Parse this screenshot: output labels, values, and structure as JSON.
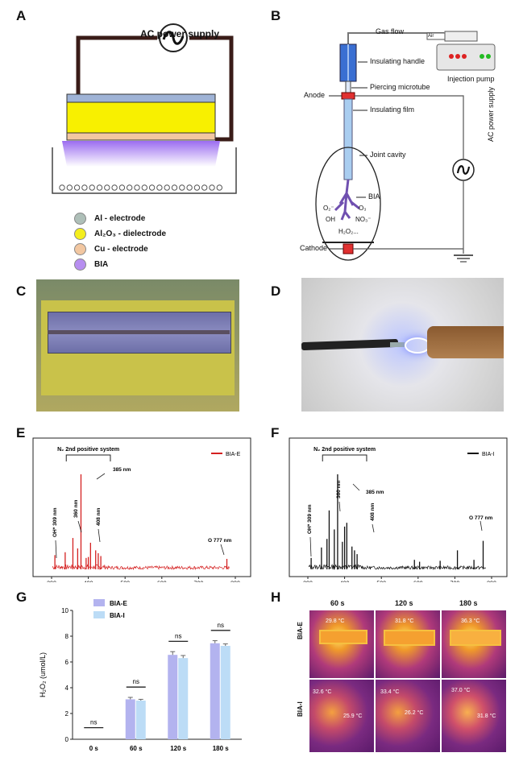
{
  "panels": [
    "A",
    "B",
    "C",
    "D",
    "E",
    "F",
    "G",
    "H"
  ],
  "panel_a": {
    "power_label": "AC  power supply",
    "legend": [
      {
        "label": "Al - electrode",
        "color": "#aebfb8"
      },
      {
        "label": "Al₂O₃ - dielectrode",
        "color": "#f4ee1e"
      },
      {
        "label": "Cu - electrode",
        "color": "#f2c7a1"
      },
      {
        "label": "BIA",
        "color": "#b78ef0"
      }
    ],
    "colors": {
      "electrode_top": "#9fb3d6",
      "dielectric": "#f8f000",
      "cu": "#f2c7a1",
      "plasma": "#a47bf0",
      "wire": "#3a1c18"
    }
  },
  "panel_b": {
    "gas_flow": "Gas flow",
    "air": "Air",
    "injection_pump": "Injection pump",
    "insulating_handle": "Insulating handle",
    "piercing_microtube": "Piercing  microtube",
    "anode": "Anode",
    "insulating_film": "Insulating film",
    "joint_cavity": "Joint cavity",
    "bia": "BIA",
    "ac_power": "AC power supply",
    "cathode": "Cathode",
    "species": {
      "o2": "O₂⁻",
      "o3": "O₃",
      "oh": "OH",
      "no3": "NO₃⁻",
      "h2o2": "H₂O₂..."
    }
  },
  "chart_e": {
    "series": "BIA-E",
    "color": "#d42020",
    "bracket": "N₂ 2nd positive system",
    "annotations": [
      "OH* 309 nm",
      "360 nm",
      "385 nm",
      "408 nm",
      "O 777 nm"
    ],
    "ticks": [
      "300",
      "400",
      "500",
      "600",
      "700",
      "800"
    ]
  },
  "chart_f": {
    "series": "BIA-I",
    "color": "#111111",
    "bracket": "N₂ 2nd positive system",
    "annotations": [
      "OH* 309 nm",
      "360 nm",
      "385 nm",
      "408 nm",
      "O 777 nm"
    ],
    "ticks": [
      "300",
      "400",
      "500",
      "600",
      "700",
      "800"
    ]
  },
  "chart_data": [
    {
      "type": "line",
      "title": "",
      "series": [
        {
          "name": "BIA-E",
          "color": "#d42020"
        }
      ],
      "xlim": [
        300,
        800
      ],
      "ticks": [
        300,
        400,
        500,
        600,
        700,
        800
      ],
      "peaks": [
        [
          309,
          0.15
        ],
        [
          337,
          0.18
        ],
        [
          358,
          0.33
        ],
        [
          371,
          0.22
        ],
        [
          380,
          1.0
        ],
        [
          394,
          0.12
        ],
        [
          400,
          0.13
        ],
        [
          406,
          0.28
        ],
        [
          420,
          0.2
        ],
        [
          427,
          0.17
        ],
        [
          434,
          0.14
        ],
        [
          777,
          0.11
        ]
      ]
    },
    {
      "type": "line",
      "title": "",
      "series": [
        {
          "name": "BIA-I",
          "color": "#111111"
        }
      ],
      "xlim": [
        300,
        800
      ],
      "ticks": [
        300,
        400,
        500,
        600,
        700,
        800
      ],
      "peaks": [
        [
          309,
          0.12
        ],
        [
          337,
          0.23
        ],
        [
          352,
          0.32
        ],
        [
          358,
          0.62
        ],
        [
          372,
          0.42
        ],
        [
          381,
          1.0
        ],
        [
          394,
          0.29
        ],
        [
          400,
          0.45
        ],
        [
          406,
          0.49
        ],
        [
          420,
          0.24
        ],
        [
          427,
          0.2
        ],
        [
          434,
          0.16
        ],
        [
          590,
          0.1
        ],
        [
          604,
          0.08
        ],
        [
          660,
          0.09
        ],
        [
          707,
          0.2
        ],
        [
          752,
          0.1
        ],
        [
          777,
          0.3
        ]
      ]
    },
    {
      "type": "bar",
      "categories": [
        "0 s",
        "60 s",
        "120 s",
        "180 s"
      ],
      "ylabel": "H₂O₂ (umol/L)",
      "ylim": [
        0,
        10
      ],
      "yticks": [
        "0",
        "2",
        "4",
        "6",
        "8",
        "10"
      ],
      "series": [
        {
          "name": "BIA-E",
          "color": "#b3b3ef",
          "values": [
            0,
            3.1,
            6.55,
            7.45
          ],
          "errors": [
            0,
            0.15,
            0.25,
            0.2
          ]
        },
        {
          "name": "BIA-I",
          "color": "#bcdcf6",
          "values": [
            0,
            3.0,
            6.3,
            7.25
          ],
          "errors": [
            0,
            0.1,
            0.2,
            0.15
          ]
        }
      ],
      "significance": [
        "ns",
        "ns",
        "ns",
        "ns"
      ]
    }
  ],
  "panel_h": {
    "columns": [
      "60 s",
      "120 s",
      "180 s"
    ],
    "rows": [
      "BIA-E",
      "BIA-I"
    ],
    "temps_e": [
      "29.8 °C",
      "31.8 °C",
      "36.3 °C"
    ],
    "temps_i": [
      [
        "32.6 °C",
        "25.9 °C"
      ],
      [
        "33.4 °C",
        "26.2 °C"
      ],
      [
        "37.0 °C",
        "31.8 °C"
      ]
    ]
  }
}
